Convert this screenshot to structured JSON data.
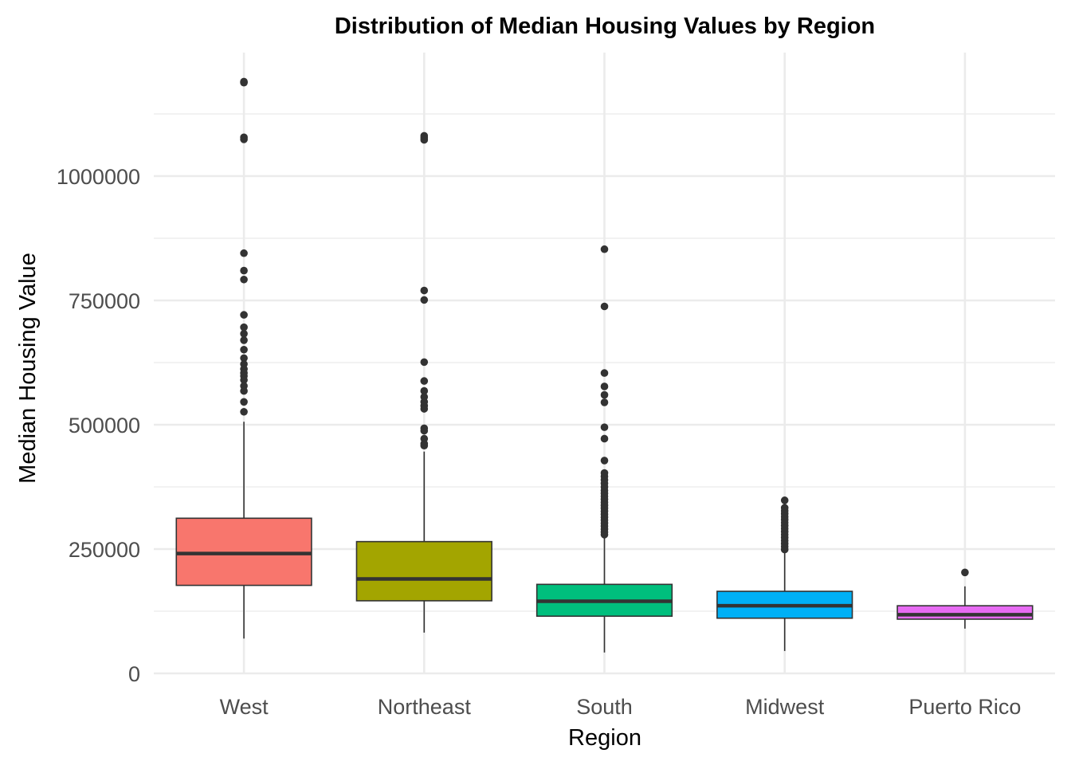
{
  "chart_data": {
    "type": "boxplot",
    "title": "Distribution of Median Housing Values by Region",
    "xlabel": "Region",
    "ylabel": "Median Housing Value",
    "ylim": [
      0,
      1200000
    ],
    "yticks": [
      0,
      250000,
      500000,
      750000,
      1000000
    ],
    "ytick_labels": [
      "0",
      "250000",
      "500000",
      "750000",
      "1000000"
    ],
    "grid": true,
    "legend": "none",
    "categories": [
      "West",
      "Northeast",
      "South",
      "Midwest",
      "Puerto Rico"
    ],
    "boxes": [
      {
        "category": "West",
        "color": "#F8766D",
        "lower_whisker": 70000,
        "q1": 177000,
        "median": 241000,
        "q3": 312000,
        "upper_whisker": 506000,
        "outliers": [
          1190000,
          1188000,
          1078000,
          1074000,
          845000,
          810000,
          792000,
          721000,
          696000,
          683000,
          670000,
          651000,
          634000,
          622000,
          612000,
          604000,
          598000,
          590000,
          578000,
          568000,
          546000,
          526000
        ]
      },
      {
        "category": "Northeast",
        "color": "#A3A500",
        "lower_whisker": 82000,
        "q1": 146000,
        "median": 190000,
        "q3": 265000,
        "upper_whisker": 446000,
        "outliers": [
          1081000,
          1077000,
          1073000,
          770000,
          751000,
          626000,
          588000,
          568000,
          556000,
          546000,
          538000,
          532000,
          493000,
          488000,
          472000,
          462000,
          458000
        ]
      },
      {
        "category": "South",
        "color": "#00BF7D",
        "lower_whisker": 42000,
        "q1": 115000,
        "median": 145000,
        "q3": 179000,
        "upper_whisker": 274000,
        "outliers": [
          853000,
          738000,
          604000,
          577000,
          560000,
          545000,
          495000,
          472000,
          428000,
          403000,
          396000,
          389000,
          382000,
          375000,
          368000,
          362000,
          356000,
          350000,
          344000,
          338000,
          332000,
          326000,
          320000,
          314000,
          308000,
          302000,
          296000,
          290000,
          284000,
          279000
        ]
      },
      {
        "category": "Midwest",
        "color": "#00B0F6",
        "lower_whisker": 45000,
        "q1": 111000,
        "median": 136000,
        "q3": 165000,
        "upper_whisker": 243000,
        "outliers": [
          348000,
          333000,
          327000,
          321000,
          315000,
          309000,
          303000,
          297000,
          291000,
          285000,
          279000,
          273000,
          267000,
          261000,
          255000,
          249000
        ]
      },
      {
        "category": "Puerto Rico",
        "color": "#E76BF3",
        "lower_whisker": 90000,
        "q1": 109000,
        "median": 118000,
        "q3": 136000,
        "upper_whisker": 175000,
        "outliers": [
          203000
        ]
      }
    ]
  }
}
